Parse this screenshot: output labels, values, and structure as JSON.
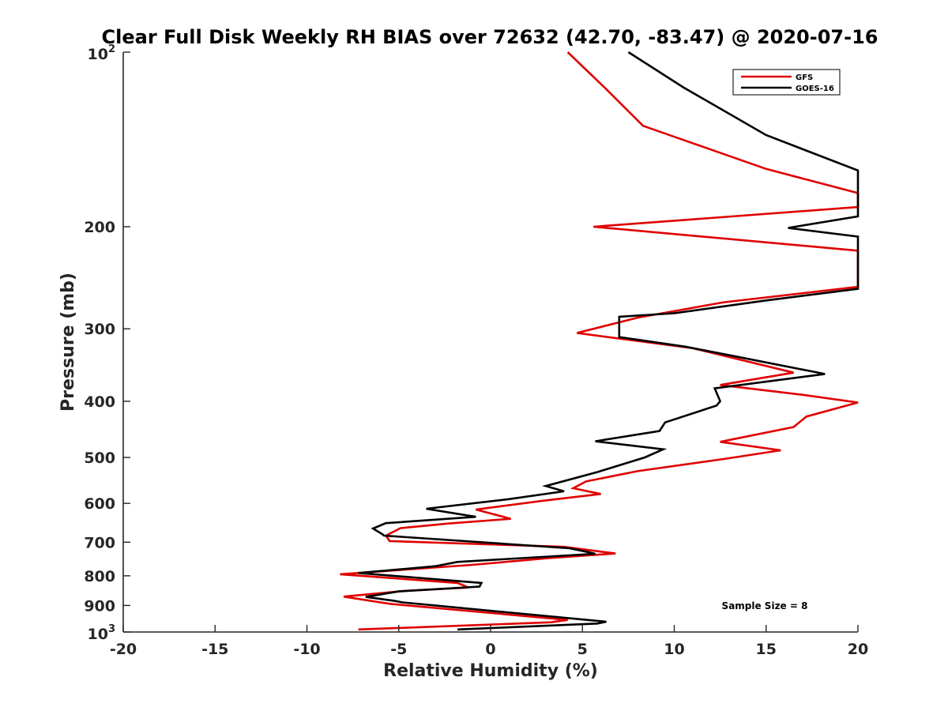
{
  "chart_data": {
    "type": "line",
    "title": "Clear Full Disk Weekly RH BIAS over 72632 (42.70, -83.47) @ 2020-07-16",
    "xlabel": "Relative Humidity (%)",
    "ylabel": "Pressure (mb)",
    "xlim": [
      -20,
      20
    ],
    "ylim": [
      100,
      1000
    ],
    "y_scale": "log",
    "y_reversed": true,
    "x_ticks": [
      -20,
      -15,
      -10,
      -5,
      0,
      5,
      10,
      15,
      20
    ],
    "y_ticks": [
      200,
      300,
      400,
      500,
      600,
      700,
      800,
      900
    ],
    "y_tick_base": "10",
    "y_tick_exp_top": "2",
    "y_tick_exp_bottom": "3",
    "legend_position": "top-right",
    "annotation": "Sample Size = 8",
    "series": [
      {
        "name": "GFS",
        "color": "#e00000",
        "points": [
          [
            4.2,
            100
          ],
          [
            6.2,
            115
          ],
          [
            8.3,
            134
          ],
          [
            15,
            159
          ],
          [
            20,
            175
          ],
          [
            20,
            185
          ],
          [
            5.6,
            200
          ],
          [
            20,
            220
          ],
          [
            20,
            254
          ],
          [
            12.7,
            270
          ],
          [
            8,
            287
          ],
          [
            4.7,
            305
          ],
          [
            11,
            324
          ],
          [
            16.5,
            357
          ],
          [
            12.5,
            375
          ],
          [
            17,
            390
          ],
          [
            20,
            402
          ],
          [
            17.2,
            425
          ],
          [
            16.5,
            443
          ],
          [
            12.5,
            470
          ],
          [
            15.8,
            486
          ],
          [
            12.7,
            503
          ],
          [
            8,
            528
          ],
          [
            5.2,
            550
          ],
          [
            4.5,
            565
          ],
          [
            6,
            578
          ],
          [
            3,
            593
          ],
          [
            -0.8,
            615
          ],
          [
            1.1,
            638
          ],
          [
            -2.3,
            650
          ],
          [
            -4.9,
            662
          ],
          [
            -5.7,
            682
          ],
          [
            -5.5,
            697
          ],
          [
            4,
            713
          ],
          [
            6.8,
            732
          ],
          [
            3.1,
            746
          ],
          [
            -1,
            766
          ],
          [
            -8.2,
            795
          ],
          [
            -1.8,
            823
          ],
          [
            -1.2,
            838
          ],
          [
            -4.6,
            849
          ],
          [
            -8,
            869
          ],
          [
            -5.5,
            894
          ],
          [
            4.2,
            953
          ],
          [
            3.3,
            962
          ],
          [
            -7.2,
            990
          ]
        ]
      },
      {
        "name": "GOES-16",
        "color": "#000000",
        "points": [
          [
            7.5,
            100
          ],
          [
            10.5,
            115
          ],
          [
            15,
            139
          ],
          [
            20,
            160
          ],
          [
            20,
            192
          ],
          [
            16.2,
            201
          ],
          [
            20,
            208
          ],
          [
            20,
            256
          ],
          [
            15,
            268
          ],
          [
            10,
            282
          ],
          [
            7,
            286
          ],
          [
            7,
            310
          ],
          [
            10.6,
            322
          ],
          [
            14,
            338
          ],
          [
            18.2,
            359
          ],
          [
            12.2,
            380
          ],
          [
            12.5,
            400
          ],
          [
            12.3,
            407
          ],
          [
            9.5,
            435
          ],
          [
            9.2,
            450
          ],
          [
            5.7,
            469
          ],
          [
            9.4,
            484
          ],
          [
            8.4,
            500
          ],
          [
            5.8,
            530
          ],
          [
            3,
            560
          ],
          [
            4,
            572
          ],
          [
            1,
            590
          ],
          [
            -3.5,
            613
          ],
          [
            -0.8,
            633
          ],
          [
            -5.7,
            649
          ],
          [
            -6.4,
            663
          ],
          [
            -5.9,
            678
          ],
          [
            -5.8,
            682
          ],
          [
            4.3,
            717
          ],
          [
            5.3,
            728
          ],
          [
            5.7,
            733
          ],
          [
            -1.8,
            757
          ],
          [
            -3,
            770
          ],
          [
            -7.2,
            791
          ],
          [
            -0.5,
            823
          ],
          [
            -0.6,
            835
          ],
          [
            -5,
            851
          ],
          [
            -6.8,
            870
          ],
          [
            -5.2,
            884
          ],
          [
            -4.8,
            889
          ],
          [
            6.3,
            960
          ],
          [
            5.8,
            967
          ],
          [
            -1.8,
            990
          ]
        ]
      }
    ]
  }
}
